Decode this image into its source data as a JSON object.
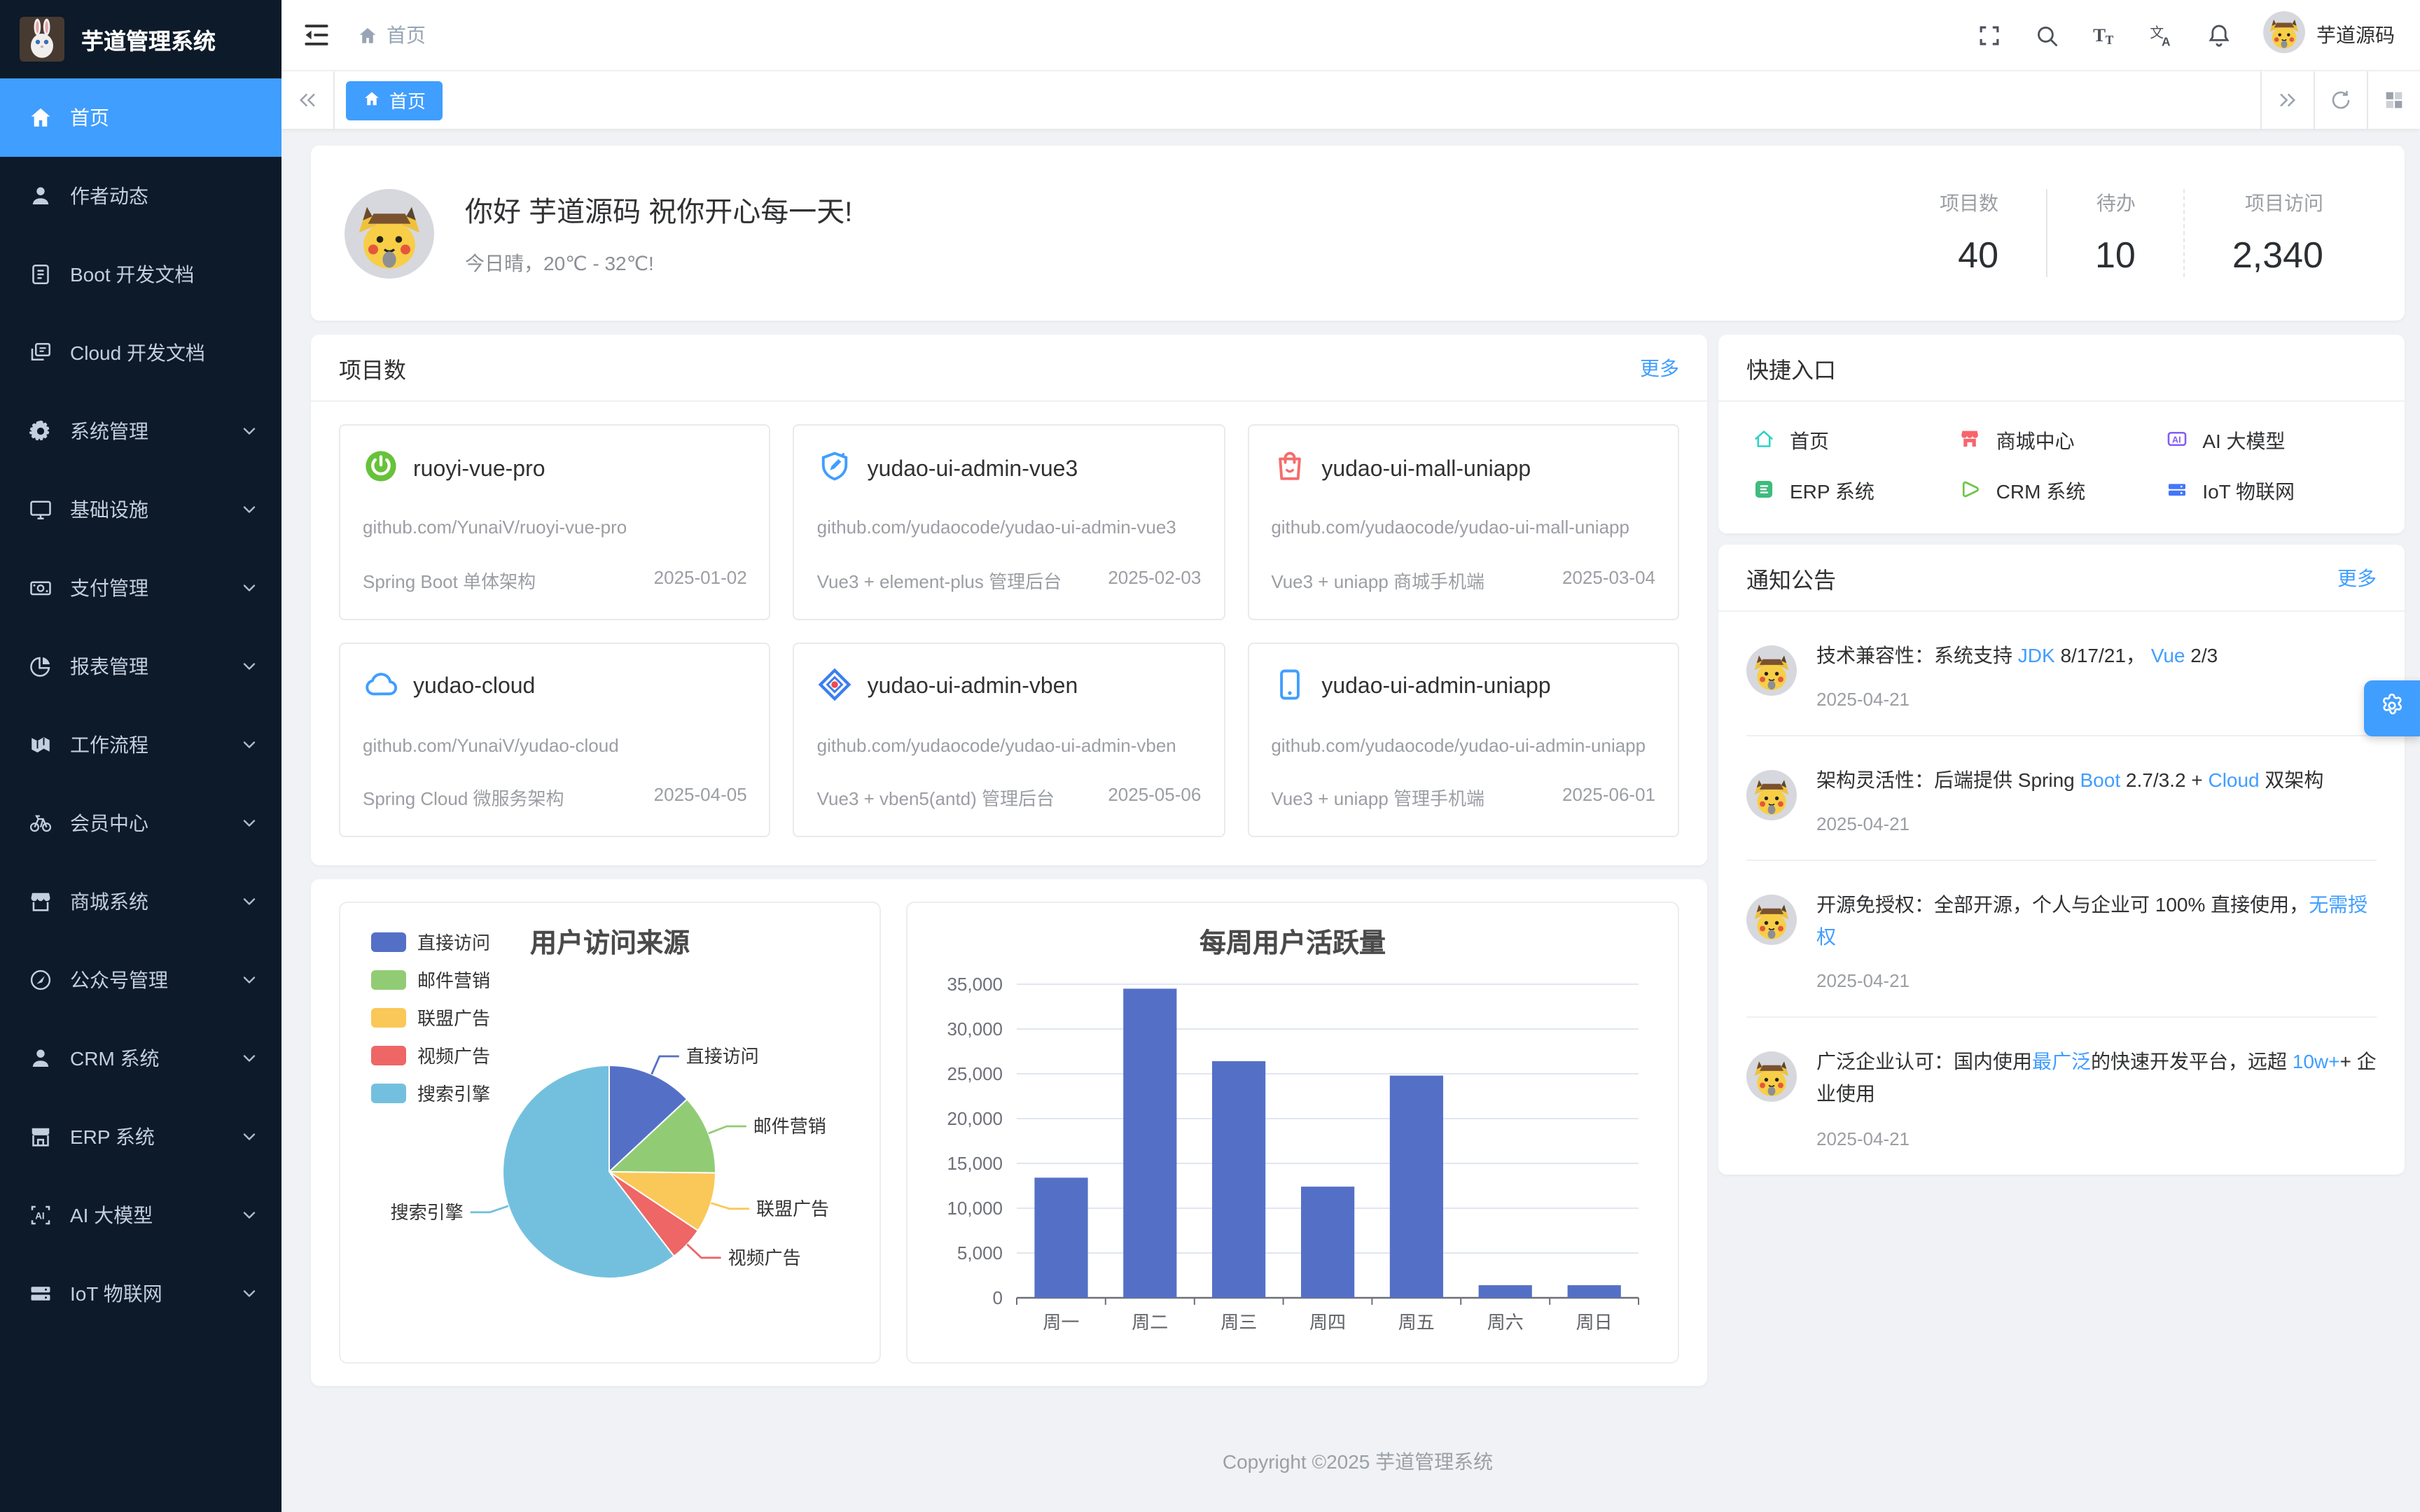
{
  "app": {
    "title": "芋道管理系统",
    "user": "芋道源码"
  },
  "header": {
    "breadcrumb": "首页",
    "icons": [
      "fullscreen-icon",
      "search-icon",
      "font-size-icon",
      "language-icon",
      "bell-icon"
    ]
  },
  "tabbar": {
    "active_tab": "首页"
  },
  "sidebar": {
    "items": [
      {
        "label": "首页",
        "icon": "home-icon",
        "active": true,
        "arrow": false
      },
      {
        "label": "作者动态",
        "icon": "user-icon",
        "active": false,
        "arrow": false
      },
      {
        "label": "Boot 开发文档",
        "icon": "document-icon",
        "active": false,
        "arrow": false
      },
      {
        "label": "Cloud 开发文档",
        "icon": "documents-icon",
        "active": false,
        "arrow": false
      },
      {
        "label": "系统管理",
        "icon": "gear-icon",
        "active": false,
        "arrow": true
      },
      {
        "label": "基础设施",
        "icon": "monitor-icon",
        "active": false,
        "arrow": true
      },
      {
        "label": "支付管理",
        "icon": "money-icon",
        "active": false,
        "arrow": true
      },
      {
        "label": "报表管理",
        "icon": "pie-chart-icon",
        "active": false,
        "arrow": true
      },
      {
        "label": "工作流程",
        "icon": "workflow-icon",
        "active": false,
        "arrow": true
      },
      {
        "label": "会员中心",
        "icon": "bicycle-icon",
        "active": false,
        "arrow": true
      },
      {
        "label": "商城系统",
        "icon": "shop-icon",
        "active": false,
        "arrow": true
      },
      {
        "label": "公众号管理",
        "icon": "compass-icon",
        "active": false,
        "arrow": true
      },
      {
        "label": "CRM 系统",
        "icon": "user-icon",
        "active": false,
        "arrow": true
      },
      {
        "label": "ERP 系统",
        "icon": "store-icon",
        "active": false,
        "arrow": true
      },
      {
        "label": "AI 大模型",
        "icon": "ai-icon",
        "active": false,
        "arrow": true
      },
      {
        "label": "IoT 物联网",
        "icon": "iot-icon",
        "active": false,
        "arrow": true
      }
    ]
  },
  "greeting": {
    "title": "你好 芋道源码 祝你开心每一天!",
    "subtitle": "今日晴，20℃ - 32℃!",
    "stats": [
      {
        "label": "项目数",
        "value": "40"
      },
      {
        "label": "待办",
        "value": "10"
      },
      {
        "label": "项目访问",
        "value": "2,340"
      }
    ]
  },
  "projects": {
    "title": "项目数",
    "more": "更多",
    "cards": [
      {
        "name": "ruoyi-vue-pro",
        "icon": "spring-icon",
        "url": "github.com/YunaiV/ruoyi-vue-pro",
        "desc": "Spring Boot 单体架构",
        "date": "2025-01-02"
      },
      {
        "name": "yudao-ui-admin-vue3",
        "icon": "edit-square-icon",
        "url": "github.com/yudaocode/yudao-ui-admin-vue3",
        "desc": "Vue3 + element-plus 管理后台",
        "date": "2025-02-03"
      },
      {
        "name": "yudao-ui-mall-uniapp",
        "icon": "shopping-bag-icon",
        "url": "github.com/yudaocode/yudao-ui-mall-uniapp",
        "desc": "Vue3 + uniapp 商城手机端",
        "date": "2025-03-04"
      },
      {
        "name": "yudao-cloud",
        "icon": "cloud-icon",
        "url": "github.com/YunaiV/yudao-cloud",
        "desc": "Spring Cloud 微服务架构",
        "date": "2025-04-05"
      },
      {
        "name": "yudao-ui-admin-vben",
        "icon": "vben-diamond-icon",
        "url": "github.com/yudaocode/yudao-ui-admin-vben",
        "desc": "Vue3 + vben5(antd) 管理后台",
        "date": "2025-05-06"
      },
      {
        "name": "yudao-ui-admin-uniapp",
        "icon": "phone-icon",
        "url": "github.com/yudaocode/yudao-ui-admin-uniapp",
        "desc": "Vue3 + uniapp 管理手机端",
        "date": "2025-06-01"
      }
    ]
  },
  "chart_data": [
    {
      "type": "pie",
      "title": "用户访问来源",
      "legend_position": "top-left",
      "series": [
        {
          "name": "直接访问",
          "value": 335,
          "color": "#5470c6"
        },
        {
          "name": "邮件营销",
          "value": 310,
          "color": "#91cc75"
        },
        {
          "name": "联盟广告",
          "value": 234,
          "color": "#fac858"
        },
        {
          "name": "视频广告",
          "value": 135,
          "color": "#ee6666"
        },
        {
          "name": "搜索引擎",
          "value": 1548,
          "color": "#73c0de"
        }
      ]
    },
    {
      "type": "bar",
      "title": "每周用户活跃量",
      "categories": [
        "周一",
        "周二",
        "周三",
        "周四",
        "周五",
        "周六",
        "周日"
      ],
      "values": [
        13400,
        34500,
        26400,
        12400,
        24800,
        1400,
        1400
      ],
      "ylim": [
        0,
        35000
      ],
      "ytick_step": 5000,
      "bar_color": "#5470c6",
      "grid": true,
      "xlabel": "",
      "ylabel": ""
    }
  ],
  "quick": {
    "title": "快捷入口",
    "items": [
      {
        "label": "首页",
        "icon": "home-outline-icon",
        "color": "#2DD3C3"
      },
      {
        "label": "商城中心",
        "icon": "mall-icon",
        "color": "#F8646C"
      },
      {
        "label": "AI 大模型",
        "icon": "ai-chip-icon",
        "color": "#835CF5"
      },
      {
        "label": "ERP 系统",
        "icon": "erp-icon",
        "color": "#3FBB7D"
      },
      {
        "label": "CRM 系统",
        "icon": "crm-play-icon",
        "color": "#6DC544"
      },
      {
        "label": "IoT 物联网",
        "icon": "iot-server-icon",
        "color": "#4376FA"
      }
    ]
  },
  "notices": {
    "title": "通知公告",
    "more": "更多",
    "items": [
      {
        "date": "2025-04-21",
        "segments": [
          {
            "t": "技术兼容性：系统支持 "
          },
          {
            "t": "JDK",
            "link": true
          },
          {
            "t": " 8/17/21， "
          },
          {
            "t": "Vue",
            "link": true
          },
          {
            "t": " 2/3"
          }
        ]
      },
      {
        "date": "2025-04-21",
        "segments": [
          {
            "t": "架构灵活性：后端提供 Spring "
          },
          {
            "t": "Boot",
            "link": true
          },
          {
            "t": " 2.7/3.2 + "
          },
          {
            "t": "Cloud",
            "link": true
          },
          {
            "t": " 双架构"
          }
        ]
      },
      {
        "date": "2025-04-21",
        "segments": [
          {
            "t": "开源免授权：全部开源，个人与企业可 100% 直接使用，"
          },
          {
            "t": "无需授权",
            "link": true
          }
        ]
      },
      {
        "date": "2025-04-21",
        "segments": [
          {
            "t": "广泛企业认可：国内使用"
          },
          {
            "t": "最广泛",
            "link": true
          },
          {
            "t": "的快速开发平台，远超 "
          },
          {
            "t": "10w+",
            "link": true
          },
          {
            "t": "+ 企业使用"
          }
        ]
      }
    ]
  },
  "footer": {
    "copyright": "Copyright ©2025 芋道管理系统"
  },
  "floating": {
    "settings_icon": "gear-icon"
  }
}
